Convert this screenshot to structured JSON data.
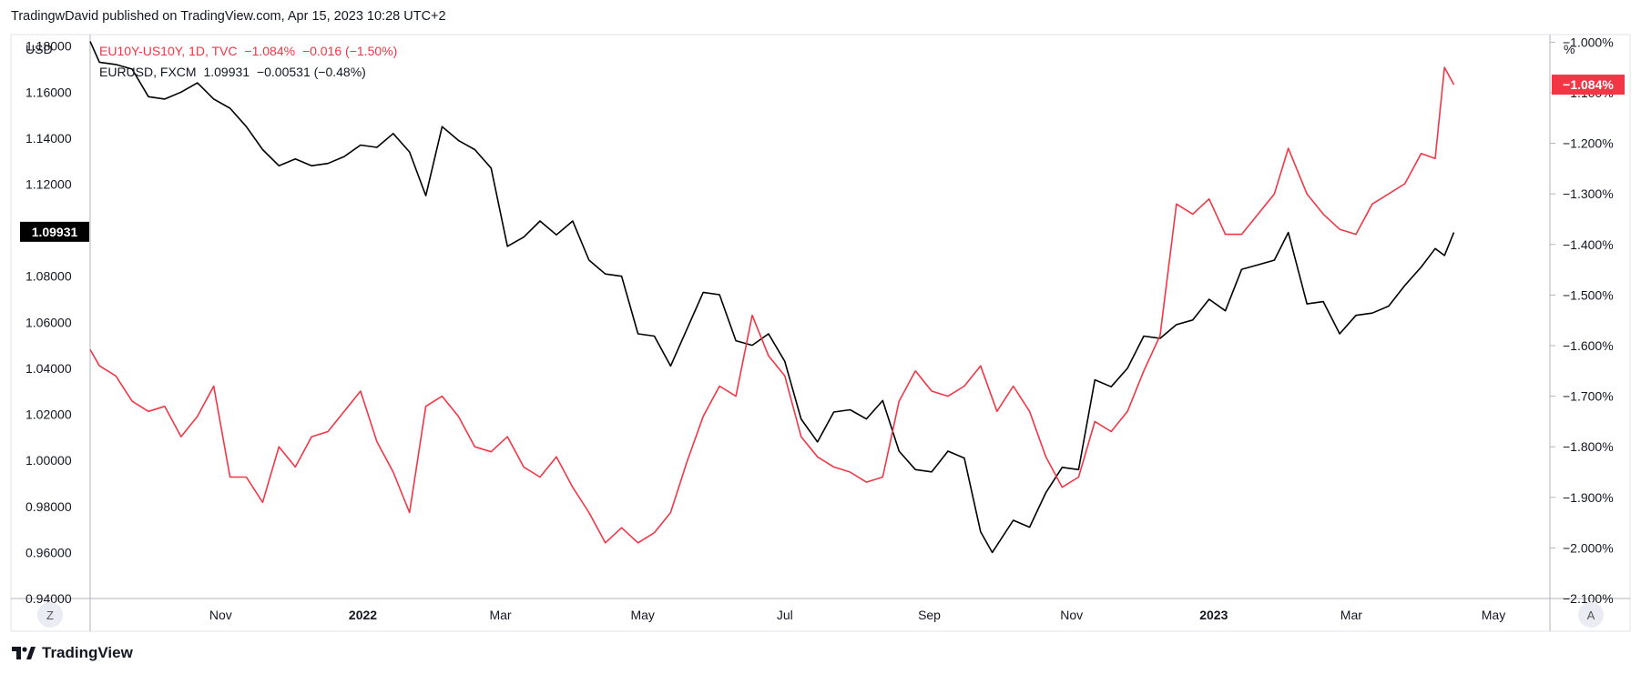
{
  "header": {
    "publisher": "TradingwDavid published on TradingView.com, Apr 15, 2023 10:28 UTC+2"
  },
  "legend": [
    {
      "symbol": "EU10Y-US10Y, 1D, TVC",
      "value": "−1.084%",
      "change": "−0.016 (−1.50%)",
      "color": "#f23645"
    },
    {
      "symbol": "EURUSD, FXCM",
      "value": "1.09931",
      "change": "−0.00531 (−0.48%)",
      "color": "#131722"
    }
  ],
  "footer": {
    "brand": "TradingView"
  },
  "buttons": {
    "left": "Z",
    "right": "A"
  },
  "chart_data": {
    "type": "line",
    "left_axis": {
      "unit_label": "USD",
      "ticks": [
        "1.18000",
        "1.16000",
        "1.14000",
        "1.12000",
        "1.10000",
        "1.08000",
        "1.06000",
        "1.04000",
        "1.02000",
        "1.00000",
        "0.98000",
        "0.96000",
        "0.94000"
      ],
      "range": [
        0.94,
        1.185
      ],
      "last_value_label": "1.09931"
    },
    "right_axis": {
      "unit_label": "%",
      "ticks": [
        "−1.000%",
        "−1.100%",
        "−1.200%",
        "−1.300%",
        "−1.400%",
        "−1.500%",
        "−1.600%",
        "−1.700%",
        "−1.800%",
        "−1.900%",
        "−2.000%",
        "−2.100%"
      ],
      "range": [
        -2.1,
        -0.985
      ],
      "last_value_label": "−1.084%"
    },
    "x_labels": [
      "Nov",
      "2022",
      "Mar",
      "May",
      "Jul",
      "Sep",
      "Nov",
      "2023",
      "Mar",
      "May"
    ],
    "x_label_bold": [
      false,
      true,
      false,
      false,
      false,
      false,
      false,
      true,
      false,
      false
    ],
    "series": [
      {
        "name": "EURUSD, FXCM",
        "axis": "left",
        "color": "#000000",
        "points": [
          [
            "2021-09-06",
            1.182
          ],
          [
            "2021-09-10",
            1.173
          ],
          [
            "2021-09-17",
            1.172
          ],
          [
            "2021-09-24",
            1.17
          ],
          [
            "2021-10-01",
            1.158
          ],
          [
            "2021-10-08",
            1.157
          ],
          [
            "2021-10-15",
            1.16
          ],
          [
            "2021-10-22",
            1.164
          ],
          [
            "2021-10-29",
            1.157
          ],
          [
            "2021-11-05",
            1.153
          ],
          [
            "2021-11-12",
            1.145
          ],
          [
            "2021-11-19",
            1.135
          ],
          [
            "2021-11-26",
            1.128
          ],
          [
            "2021-12-03",
            1.131
          ],
          [
            "2021-12-10",
            1.128
          ],
          [
            "2021-12-17",
            1.129
          ],
          [
            "2021-12-24",
            1.132
          ],
          [
            "2021-12-31",
            1.137
          ],
          [
            "2022-01-07",
            1.136
          ],
          [
            "2022-01-14",
            1.142
          ],
          [
            "2022-01-21",
            1.134
          ],
          [
            "2022-01-28",
            1.115
          ],
          [
            "2022-02-04",
            1.145
          ],
          [
            "2022-02-11",
            1.139
          ],
          [
            "2022-02-18",
            1.135
          ],
          [
            "2022-02-25",
            1.127
          ],
          [
            "2022-03-04",
            1.093
          ],
          [
            "2022-03-11",
            1.097
          ],
          [
            "2022-03-18",
            1.104
          ],
          [
            "2022-03-25",
            1.098
          ],
          [
            "2022-04-01",
            1.104
          ],
          [
            "2022-04-08",
            1.087
          ],
          [
            "2022-04-15",
            1.081
          ],
          [
            "2022-04-22",
            1.08
          ],
          [
            "2022-04-29",
            1.055
          ],
          [
            "2022-05-06",
            1.054
          ],
          [
            "2022-05-13",
            1.041
          ],
          [
            "2022-05-20",
            1.057
          ],
          [
            "2022-05-27",
            1.073
          ],
          [
            "2022-06-03",
            1.072
          ],
          [
            "2022-06-10",
            1.052
          ],
          [
            "2022-06-17",
            1.05
          ],
          [
            "2022-06-24",
            1.055
          ],
          [
            "2022-07-01",
            1.043
          ],
          [
            "2022-07-08",
            1.018
          ],
          [
            "2022-07-15",
            1.008
          ],
          [
            "2022-07-22",
            1.021
          ],
          [
            "2022-07-29",
            1.022
          ],
          [
            "2022-08-05",
            1.018
          ],
          [
            "2022-08-12",
            1.026
          ],
          [
            "2022-08-19",
            1.004
          ],
          [
            "2022-08-26",
            0.996
          ],
          [
            "2022-09-02",
            0.995
          ],
          [
            "2022-09-09",
            1.004
          ],
          [
            "2022-09-16",
            1.001
          ],
          [
            "2022-09-23",
            0.969
          ],
          [
            "2022-09-28",
            0.96
          ],
          [
            "2022-10-07",
            0.974
          ],
          [
            "2022-10-14",
            0.971
          ],
          [
            "2022-10-21",
            0.986
          ],
          [
            "2022-10-28",
            0.997
          ],
          [
            "2022-11-04",
            0.996
          ],
          [
            "2022-11-11",
            1.035
          ],
          [
            "2022-11-18",
            1.032
          ],
          [
            "2022-11-25",
            1.04
          ],
          [
            "2022-12-02",
            1.054
          ],
          [
            "2022-12-09",
            1.053
          ],
          [
            "2022-12-16",
            1.059
          ],
          [
            "2022-12-23",
            1.061
          ],
          [
            "2022-12-30",
            1.07
          ],
          [
            "2023-01-06",
            1.065
          ],
          [
            "2023-01-13",
            1.083
          ],
          [
            "2023-01-20",
            1.085
          ],
          [
            "2023-01-27",
            1.087
          ],
          [
            "2023-02-02",
            1.099
          ],
          [
            "2023-02-10",
            1.068
          ],
          [
            "2023-02-17",
            1.069
          ],
          [
            "2023-02-24",
            1.055
          ],
          [
            "2023-03-03",
            1.063
          ],
          [
            "2023-03-10",
            1.064
          ],
          [
            "2023-03-17",
            1.067
          ],
          [
            "2023-03-24",
            1.076
          ],
          [
            "2023-03-31",
            1.084
          ],
          [
            "2023-04-06",
            1.092
          ],
          [
            "2023-04-10",
            1.089
          ],
          [
            "2023-04-14",
            1.099
          ]
        ]
      },
      {
        "name": "EU10Y-US10Y, 1D, TVC",
        "axis": "right",
        "color": "#f23645",
        "points": [
          [
            "2021-09-06",
            -1.608
          ],
          [
            "2021-09-10",
            -1.64
          ],
          [
            "2021-09-17",
            -1.66
          ],
          [
            "2021-09-24",
            -1.71
          ],
          [
            "2021-10-01",
            -1.73
          ],
          [
            "2021-10-08",
            -1.72
          ],
          [
            "2021-10-15",
            -1.78
          ],
          [
            "2021-10-22",
            -1.74
          ],
          [
            "2021-10-29",
            -1.68
          ],
          [
            "2021-11-05",
            -1.86
          ],
          [
            "2021-11-12",
            -1.86
          ],
          [
            "2021-11-19",
            -1.91
          ],
          [
            "2021-11-26",
            -1.8
          ],
          [
            "2021-12-03",
            -1.84
          ],
          [
            "2021-12-10",
            -1.78
          ],
          [
            "2021-12-17",
            -1.77
          ],
          [
            "2021-12-24",
            -1.73
          ],
          [
            "2021-12-31",
            -1.69
          ],
          [
            "2022-01-07",
            -1.79
          ],
          [
            "2022-01-14",
            -1.85
          ],
          [
            "2022-01-21",
            -1.93
          ],
          [
            "2022-01-28",
            -1.72
          ],
          [
            "2022-02-04",
            -1.7
          ],
          [
            "2022-02-11",
            -1.74
          ],
          [
            "2022-02-18",
            -1.8
          ],
          [
            "2022-02-25",
            -1.81
          ],
          [
            "2022-03-04",
            -1.78
          ],
          [
            "2022-03-11",
            -1.84
          ],
          [
            "2022-03-18",
            -1.86
          ],
          [
            "2022-03-25",
            -1.82
          ],
          [
            "2022-04-01",
            -1.88
          ],
          [
            "2022-04-08",
            -1.93
          ],
          [
            "2022-04-15",
            -1.99
          ],
          [
            "2022-04-22",
            -1.96
          ],
          [
            "2022-04-29",
            -1.99
          ],
          [
            "2022-05-06",
            -1.97
          ],
          [
            "2022-05-13",
            -1.93
          ],
          [
            "2022-05-20",
            -1.83
          ],
          [
            "2022-05-27",
            -1.74
          ],
          [
            "2022-06-03",
            -1.68
          ],
          [
            "2022-06-10",
            -1.7
          ],
          [
            "2022-06-17",
            -1.54
          ],
          [
            "2022-06-24",
            -1.62
          ],
          [
            "2022-07-01",
            -1.66
          ],
          [
            "2022-07-08",
            -1.78
          ],
          [
            "2022-07-15",
            -1.82
          ],
          [
            "2022-07-22",
            -1.84
          ],
          [
            "2022-07-29",
            -1.85
          ],
          [
            "2022-08-05",
            -1.87
          ],
          [
            "2022-08-12",
            -1.86
          ],
          [
            "2022-08-19",
            -1.71
          ],
          [
            "2022-08-26",
            -1.65
          ],
          [
            "2022-09-02",
            -1.69
          ],
          [
            "2022-09-09",
            -1.7
          ],
          [
            "2022-09-16",
            -1.68
          ],
          [
            "2022-09-23",
            -1.64
          ],
          [
            "2022-09-30",
            -1.73
          ],
          [
            "2022-10-07",
            -1.68
          ],
          [
            "2022-10-14",
            -1.73
          ],
          [
            "2022-10-21",
            -1.82
          ],
          [
            "2022-10-28",
            -1.88
          ],
          [
            "2022-11-04",
            -1.86
          ],
          [
            "2022-11-11",
            -1.75
          ],
          [
            "2022-11-18",
            -1.77
          ],
          [
            "2022-11-25",
            -1.73
          ],
          [
            "2022-12-02",
            -1.65
          ],
          [
            "2022-12-09",
            -1.58
          ],
          [
            "2022-12-16",
            -1.32
          ],
          [
            "2022-12-23",
            -1.34
          ],
          [
            "2022-12-30",
            -1.31
          ],
          [
            "2023-01-06",
            -1.38
          ],
          [
            "2023-01-13",
            -1.38
          ],
          [
            "2023-01-20",
            -1.34
          ],
          [
            "2023-01-27",
            -1.3
          ],
          [
            "2023-02-02",
            -1.21
          ],
          [
            "2023-02-10",
            -1.3
          ],
          [
            "2023-02-17",
            -1.34
          ],
          [
            "2023-02-24",
            -1.37
          ],
          [
            "2023-03-03",
            -1.38
          ],
          [
            "2023-03-10",
            -1.32
          ],
          [
            "2023-03-17",
            -1.3
          ],
          [
            "2023-03-24",
            -1.28
          ],
          [
            "2023-03-31",
            -1.22
          ],
          [
            "2023-04-06",
            -1.23
          ],
          [
            "2023-04-10",
            -1.05
          ],
          [
            "2023-04-14",
            -1.084
          ]
        ]
      }
    ]
  }
}
